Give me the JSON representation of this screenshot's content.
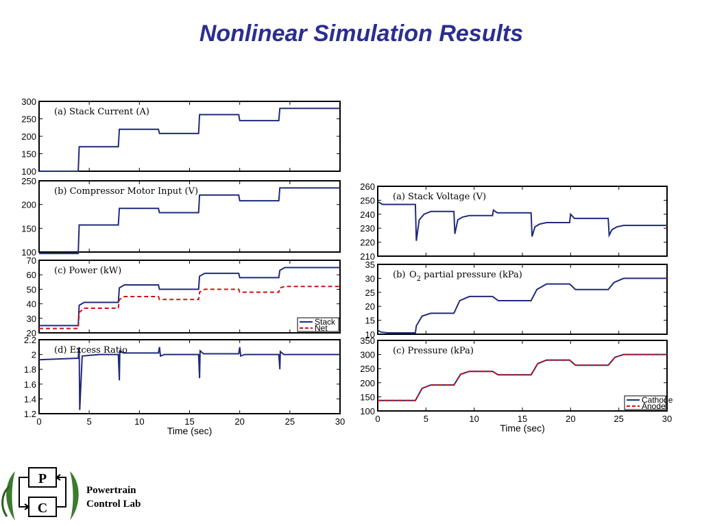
{
  "page": {
    "title": "Nonlinear Simulation Results"
  },
  "logo": {
    "p_letter": "P",
    "c_letter": "C",
    "line1": "Powertrain",
    "line2": "Control Lab"
  },
  "colors": {
    "title": "#2b2e8f",
    "series_solid": "#1f2a7a",
    "series_dashed": "#cc1111",
    "axis": "#000000"
  },
  "chart_data": [
    {
      "id": "L1",
      "type": "line",
      "title": "(a)  Stack Current (A)",
      "xlabel": "",
      "ylabel": "",
      "xlim": [
        0,
        30
      ],
      "ylim": [
        100,
        300
      ],
      "yticks": [
        100,
        150,
        200,
        250,
        300
      ],
      "xticks": [],
      "series": [
        {
          "name": "Stack Current",
          "style": "solid",
          "x": [
            0,
            3.9,
            4,
            7.9,
            8,
            11.9,
            12,
            15.9,
            16,
            19.9,
            20,
            23.9,
            24,
            30
          ],
          "y": [
            100,
            100,
            170,
            170,
            220,
            220,
            208,
            208,
            262,
            262,
            245,
            245,
            280,
            280
          ]
        }
      ]
    },
    {
      "id": "L2",
      "type": "line",
      "title": "(b)  Compressor Motor Input (V)",
      "xlabel": "",
      "ylabel": "",
      "xlim": [
        0,
        30
      ],
      "ylim": [
        100,
        250
      ],
      "yticks": [
        100,
        150,
        200,
        250
      ],
      "xticks": [],
      "series": [
        {
          "name": "Compressor Motor Input",
          "style": "solid",
          "x": [
            0,
            3.9,
            4,
            7.9,
            8,
            11.9,
            12,
            15.9,
            16,
            19.9,
            20,
            23.9,
            24,
            30
          ],
          "y": [
            97,
            97,
            157,
            157,
            192,
            192,
            183,
            183,
            220,
            220,
            208,
            208,
            235,
            235
          ]
        }
      ]
    },
    {
      "id": "L3",
      "type": "line",
      "title": "(c)  Power (kW)",
      "xlabel": "",
      "ylabel": "",
      "xlim": [
        0,
        30
      ],
      "ylim": [
        20,
        70
      ],
      "yticks": [
        20,
        30,
        40,
        50,
        60,
        70
      ],
      "xticks": [],
      "legend": [
        "Stack",
        "Net"
      ],
      "series": [
        {
          "name": "Stack",
          "style": "solid",
          "x": [
            0,
            3.9,
            4,
            4.5,
            7.9,
            8,
            8.5,
            11.9,
            12,
            15.9,
            16,
            16.5,
            19.9,
            20,
            23.9,
            24,
            24.5,
            30
          ],
          "y": [
            25,
            25,
            39,
            41,
            41,
            51,
            53,
            53,
            50,
            50,
            59,
            61,
            61,
            58,
            58,
            63,
            65,
            65
          ]
        },
        {
          "name": "Net",
          "style": "dashed",
          "x": [
            0,
            3.9,
            4,
            4.5,
            7.9,
            8,
            8.5,
            11.9,
            12,
            15.9,
            16,
            16.5,
            19.9,
            20,
            23.9,
            24,
            24.5,
            30
          ],
          "y": [
            23,
            23,
            34,
            37,
            37,
            43,
            45,
            45,
            43,
            43,
            48,
            50,
            50,
            48,
            48,
            51,
            52,
            52
          ]
        }
      ]
    },
    {
      "id": "L4",
      "type": "line",
      "title": "(d)  Excess Ratio",
      "xlabel": "Time (sec)",
      "ylabel": "",
      "xlim": [
        0,
        30
      ],
      "ylim": [
        1.2,
        2.2
      ],
      "yticks": [
        1.2,
        1.4,
        1.6,
        1.8,
        2,
        2.2
      ],
      "xticks": [
        0,
        5,
        10,
        15,
        20,
        25,
        30
      ],
      "series": [
        {
          "name": "Excess Ratio",
          "style": "solid",
          "x": [
            0,
            3.9,
            4,
            4.05,
            4.3,
            6,
            7.9,
            8,
            8.05,
            8.4,
            11.9,
            12,
            12.1,
            12.5,
            15.9,
            16,
            16.05,
            16.4,
            19.9,
            20,
            20.1,
            20.5,
            23.9,
            24,
            24.05,
            24.4,
            30
          ],
          "y": [
            1.93,
            1.95,
            2.1,
            1.25,
            1.98,
            2.0,
            2.0,
            1.65,
            2.05,
            2.02,
            2.02,
            2.1,
            1.98,
            2.0,
            2.0,
            1.68,
            2.05,
            2.01,
            2.01,
            2.1,
            1.98,
            2.0,
            2.0,
            1.8,
            2.04,
            2.0,
            2.0
          ]
        }
      ]
    },
    {
      "id": "R1",
      "type": "line",
      "title": "(a) Stack Voltage (V)",
      "xlabel": "",
      "ylabel": "",
      "xlim": [
        0,
        30
      ],
      "ylim": [
        210,
        260
      ],
      "yticks": [
        210,
        220,
        230,
        240,
        250,
        260
      ],
      "xticks": [],
      "series": [
        {
          "name": "Stack Voltage",
          "style": "solid",
          "x": [
            0,
            0.5,
            3.9,
            4,
            4.3,
            4.8,
            5.5,
            7.9,
            8,
            8.3,
            8.8,
            9.5,
            11.9,
            12,
            12.4,
            15.9,
            16,
            16.3,
            16.8,
            17.5,
            19.9,
            20,
            20.4,
            23.9,
            24,
            24.3,
            24.8,
            25.5,
            30
          ],
          "y": [
            249,
            247,
            247,
            221,
            236,
            240,
            242,
            242,
            226,
            236,
            238,
            239,
            239,
            243,
            241,
            241,
            224,
            231,
            233,
            234,
            234,
            240,
            237,
            237,
            225,
            229,
            231,
            232,
            232
          ]
        }
      ]
    },
    {
      "id": "R2",
      "type": "line",
      "title": "(b)",
      "xlabel": "",
      "ylabel": "",
      "title_parts": {
        "o": "O",
        "sub": "2",
        "rest": " partial pressure (kPa)"
      },
      "xlim": [
        0,
        30
      ],
      "ylim": [
        10,
        35
      ],
      "yticks": [
        10,
        15,
        20,
        25,
        30,
        35
      ],
      "xticks": [],
      "series": [
        {
          "name": "O2 partial pressure",
          "style": "solid",
          "x": [
            0,
            0.3,
            1,
            3.9,
            4,
            4.6,
            5.5,
            7.9,
            8.5,
            9.5,
            11.9,
            12.5,
            15.9,
            16.5,
            17.5,
            19.9,
            20.5,
            23.9,
            24.5,
            25.5,
            30
          ],
          "y": [
            11.5,
            10.8,
            10.5,
            10.5,
            13,
            16.5,
            17.5,
            17.5,
            22,
            23.5,
            23.5,
            22,
            22,
            26,
            28,
            28,
            26,
            26,
            28.5,
            30,
            30
          ]
        }
      ]
    },
    {
      "id": "R3",
      "type": "line",
      "title": "(c) Pressure (kPa)",
      "xlabel": "Time (sec)",
      "ylabel": "",
      "xlim": [
        0,
        30
      ],
      "ylim": [
        100,
        350
      ],
      "yticks": [
        100,
        150,
        200,
        250,
        300,
        350
      ],
      "xticks": [
        0,
        5,
        10,
        15,
        20,
        25,
        30
      ],
      "legend": [
        "Cathode",
        "Anode"
      ],
      "series": [
        {
          "name": "Cathode",
          "style": "solid",
          "x": [
            0,
            3.9,
            4.6,
            5.5,
            7.9,
            8.6,
            9.5,
            11.9,
            12.5,
            15.9,
            16.6,
            17.5,
            19.9,
            20.5,
            23.9,
            24.6,
            25.5,
            30
          ],
          "y": [
            137,
            137,
            180,
            192,
            192,
            230,
            240,
            240,
            228,
            228,
            268,
            280,
            280,
            262,
            262,
            290,
            300,
            300
          ]
        },
        {
          "name": "Anode",
          "style": "dashed",
          "x": [
            0,
            3.9,
            4.6,
            5.5,
            7.9,
            8.6,
            9.5,
            11.9,
            12.5,
            15.9,
            16.6,
            17.5,
            19.9,
            20.5,
            23.9,
            24.6,
            25.5,
            30
          ],
          "y": [
            137,
            137,
            180,
            192,
            192,
            230,
            240,
            240,
            228,
            228,
            268,
            280,
            280,
            262,
            262,
            290,
            300,
            300
          ]
        }
      ]
    }
  ]
}
